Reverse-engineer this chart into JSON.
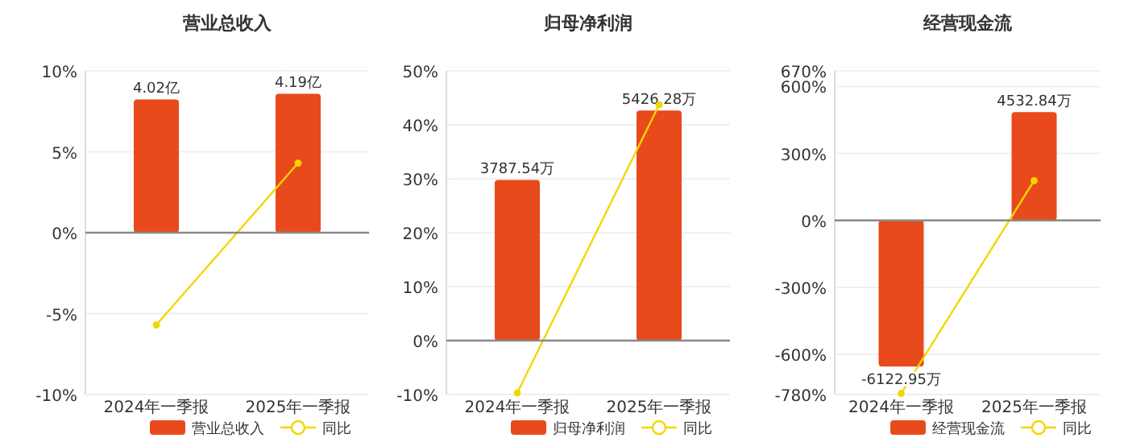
{
  "chart_data": [
    {
      "type": "bar",
      "title": "营业总收入",
      "categories": [
        "2024年一季报",
        "2025年一季报"
      ],
      "series": [
        {
          "name": "营业总收入",
          "axis": "y2",
          "color": "#e84a1b",
          "values": [
            4.02,
            4.19
          ],
          "value_labels": [
            "4.02亿",
            "4.19亿"
          ]
        },
        {
          "name": "同比",
          "type": "line",
          "color": "#f2d600",
          "values": [
            -5.7,
            4.3
          ]
        }
      ],
      "ylim": [
        -10,
        10
      ],
      "yticks": [
        {
          "value": -10,
          "label": "-10%"
        },
        {
          "value": -5,
          "label": "-5%"
        },
        {
          "value": 0,
          "label": "0%"
        },
        {
          "value": 5,
          "label": "5%"
        },
        {
          "value": 10,
          "label": "10%"
        }
      ],
      "y2lim": [
        -4.88,
        4.88
      ],
      "grid": "y",
      "legend": "bottom",
      "marker": "circle"
    },
    {
      "type": "bar",
      "title": "归母净利润",
      "categories": [
        "2024年一季报",
        "2025年一季报"
      ],
      "series": [
        {
          "name": "归母净利润",
          "axis": "y2",
          "color": "#e84a1b",
          "values": [
            3787.54,
            5426.28
          ],
          "value_labels": [
            "3787.54万",
            "5426.28万"
          ]
        },
        {
          "name": "同比",
          "type": "line",
          "color": "#f2d600",
          "values": [
            -9.7,
            43.7
          ]
        }
      ],
      "ylim": [
        -10,
        50
      ],
      "yticks": [
        {
          "value": -10,
          "label": "-10%"
        },
        {
          "value": 0,
          "label": "0%"
        },
        {
          "value": 10,
          "label": "10%"
        },
        {
          "value": 20,
          "label": "20%"
        },
        {
          "value": 30,
          "label": "30%"
        },
        {
          "value": 40,
          "label": "40%"
        },
        {
          "value": 50,
          "label": "50%"
        }
      ],
      "y2lim": [
        -1272,
        6360
      ],
      "grid": "y",
      "legend": "bottom",
      "marker": "circle"
    },
    {
      "type": "bar",
      "title": "经营现金流",
      "categories": [
        "2024年一季报",
        "2025年一季报"
      ],
      "series": [
        {
          "name": "经营现金流",
          "axis": "y2",
          "color": "#e84a1b",
          "values": [
            -6122.95,
            4532.84
          ],
          "value_labels": [
            "-6122.95万",
            "4532.84万"
          ]
        },
        {
          "name": "同比",
          "type": "line",
          "color": "#f2d600",
          "values": [
            -775,
            178
          ]
        }
      ],
      "ylim": [
        -780,
        670
      ],
      "yticks": [
        {
          "value": -780,
          "label": "-780%"
        },
        {
          "value": -600,
          "label": "-600%"
        },
        {
          "value": -300,
          "label": "-300%"
        },
        {
          "value": 0,
          "label": "0%"
        },
        {
          "value": 300,
          "label": "300%"
        },
        {
          "value": 600,
          "label": "600%"
        },
        {
          "value": 670,
          "label": "670%"
        }
      ],
      "y2lim": [
        -7293,
        6265
      ],
      "grid": "y",
      "legend": "bottom",
      "marker": "circle"
    }
  ]
}
